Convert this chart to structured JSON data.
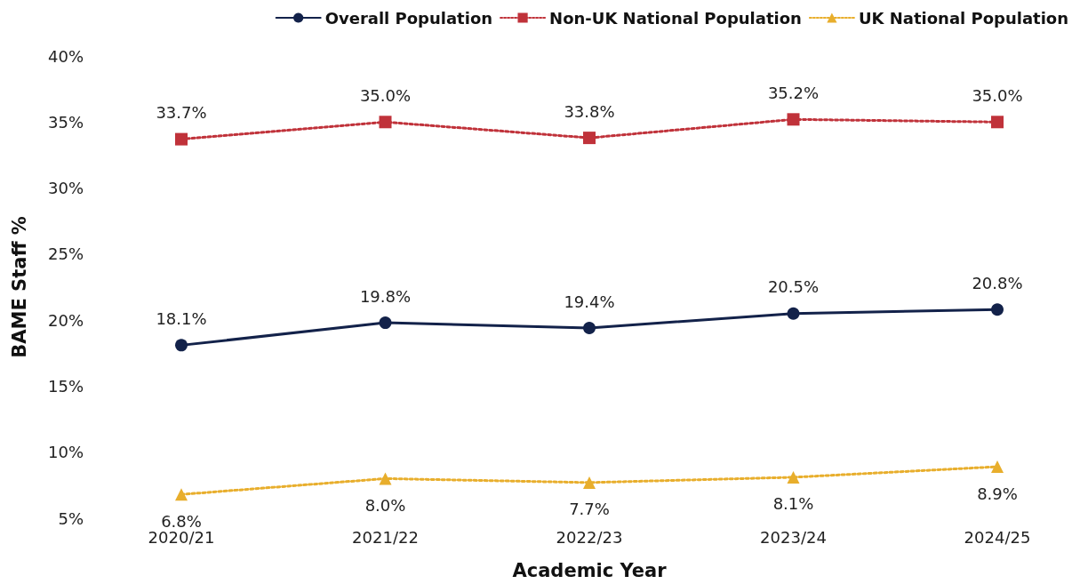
{
  "chart_data": {
    "type": "line",
    "xlabel": "Academic Year",
    "ylabel": "BAME Staff %",
    "categories": [
      "2020/21",
      "2021/22",
      "2022/23",
      "2023/24",
      "2024/25"
    ],
    "series": [
      {
        "name": "Overall Population",
        "color": "#13224a",
        "values": [
          18.1,
          19.8,
          19.4,
          20.5,
          20.8
        ],
        "value_labels": [
          "18.1%",
          "19.8%",
          "19.4%",
          "20.5%",
          "20.8%"
        ],
        "marker": "circle",
        "line_style": "solid"
      },
      {
        "name": "Non-UK National Population",
        "color": "#c0323a",
        "values": [
          33.7,
          35.0,
          33.8,
          35.2,
          35.0
        ],
        "value_labels": [
          "33.7%",
          "35.0%",
          "33.8%",
          "35.2%",
          "35.0%"
        ],
        "marker": "square",
        "line_style": "dotted"
      },
      {
        "name": "UK National Population",
        "color": "#e8ae2c",
        "values": [
          6.8,
          8.0,
          7.7,
          8.1,
          8.9
        ],
        "value_labels": [
          "6.8%",
          "8.0%",
          "7.7%",
          "8.1%",
          "8.9%"
        ],
        "marker": "triangle",
        "line_style": "dotted"
      }
    ],
    "ylim": [
      5,
      40
    ],
    "yticks": [
      {
        "value": 5,
        "label": "5%"
      },
      {
        "value": 10,
        "label": "10%"
      },
      {
        "value": 15,
        "label": "15%"
      },
      {
        "value": 20,
        "label": "20%"
      },
      {
        "value": 25,
        "label": "25%"
      },
      {
        "value": 30,
        "label": "30%"
      },
      {
        "value": 35,
        "label": "35%"
      },
      {
        "value": 40,
        "label": "40%"
      }
    ],
    "grid": false,
    "legend": "top right"
  }
}
